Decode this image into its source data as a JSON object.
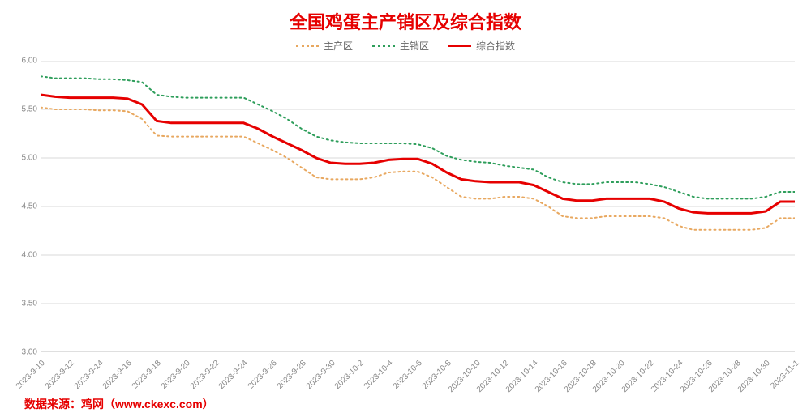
{
  "chart": {
    "type": "line",
    "title": "全国鸡蛋主产销区及综合指数",
    "title_color": "#e60000",
    "title_fontsize": 22,
    "background_color": "#ffffff",
    "plot_bg": "#ffffff",
    "grid_color": "#d9d9d9",
    "axis_color": "#bfbfbf",
    "tick_color": "#888888",
    "ylim": [
      3.0,
      6.0
    ],
    "ytick_step": 0.5,
    "yticks": [
      "3.00",
      "3.50",
      "4.00",
      "4.50",
      "5.00",
      "5.50",
      "6.00"
    ],
    "x_labels": [
      "2023-9-10",
      "2023-9-12",
      "2023-9-14",
      "2023-9-16",
      "2023-9-18",
      "2023-9-20",
      "2023-9-22",
      "2023-9-24",
      "2023-9-26",
      "2023-9-28",
      "2023-9-30",
      "2023-10-2",
      "2023-10-4",
      "2023-10-6",
      "2023-10-8",
      "2023-10-10",
      "2023-10-12",
      "2023-10-14",
      "2023-10-16",
      "2023-10-18",
      "2023-10-20",
      "2023-10-22",
      "2023-10-24",
      "2023-10-26",
      "2023-10-28",
      "2023-10-30",
      "2023-11-1"
    ],
    "legend_labels": {
      "producer": "主产区",
      "seller": "主销区",
      "composite": "综合指数"
    },
    "series": {
      "producer": {
        "color": "#e8a860",
        "style": "dotted",
        "width": 2,
        "values": [
          5.52,
          5.5,
          5.5,
          5.5,
          5.49,
          5.49,
          5.48,
          5.4,
          5.23,
          5.22,
          5.22,
          5.22,
          5.22,
          5.22,
          5.22,
          5.15,
          5.08,
          5.0,
          4.9,
          4.8,
          4.78,
          4.78,
          4.78,
          4.8,
          4.85,
          4.86,
          4.86,
          4.8,
          4.7,
          4.6,
          4.58,
          4.58,
          4.6,
          4.6,
          4.58,
          4.5,
          4.4,
          4.38,
          4.38,
          4.4,
          4.4,
          4.4,
          4.4,
          4.38,
          4.3,
          4.26,
          4.26,
          4.26,
          4.26,
          4.26,
          4.28,
          4.38,
          4.38
        ]
      },
      "seller": {
        "color": "#2e9e5b",
        "style": "dotted",
        "width": 2,
        "values": [
          5.84,
          5.82,
          5.82,
          5.82,
          5.81,
          5.81,
          5.8,
          5.78,
          5.65,
          5.63,
          5.62,
          5.62,
          5.62,
          5.62,
          5.62,
          5.55,
          5.48,
          5.4,
          5.3,
          5.22,
          5.18,
          5.16,
          5.15,
          5.15,
          5.15,
          5.15,
          5.14,
          5.1,
          5.02,
          4.98,
          4.96,
          4.95,
          4.92,
          4.9,
          4.88,
          4.8,
          4.75,
          4.73,
          4.73,
          4.75,
          4.75,
          4.75,
          4.73,
          4.7,
          4.65,
          4.6,
          4.58,
          4.58,
          4.58,
          4.58,
          4.6,
          4.65,
          4.65
        ]
      },
      "composite": {
        "color": "#e60000",
        "style": "solid",
        "width": 3,
        "values": [
          5.65,
          5.63,
          5.62,
          5.62,
          5.62,
          5.62,
          5.61,
          5.55,
          5.38,
          5.36,
          5.36,
          5.36,
          5.36,
          5.36,
          5.36,
          5.3,
          5.22,
          5.15,
          5.08,
          5.0,
          4.95,
          4.94,
          4.94,
          4.95,
          4.98,
          4.99,
          4.99,
          4.94,
          4.85,
          4.78,
          4.76,
          4.75,
          4.75,
          4.75,
          4.72,
          4.65,
          4.58,
          4.56,
          4.56,
          4.58,
          4.58,
          4.58,
          4.58,
          4.55,
          4.48,
          4.44,
          4.43,
          4.43,
          4.43,
          4.43,
          4.45,
          4.55,
          4.55
        ]
      }
    },
    "source_text": "数据来源：鸡网（www.ckexc.com）",
    "source_color": "#e60000"
  }
}
